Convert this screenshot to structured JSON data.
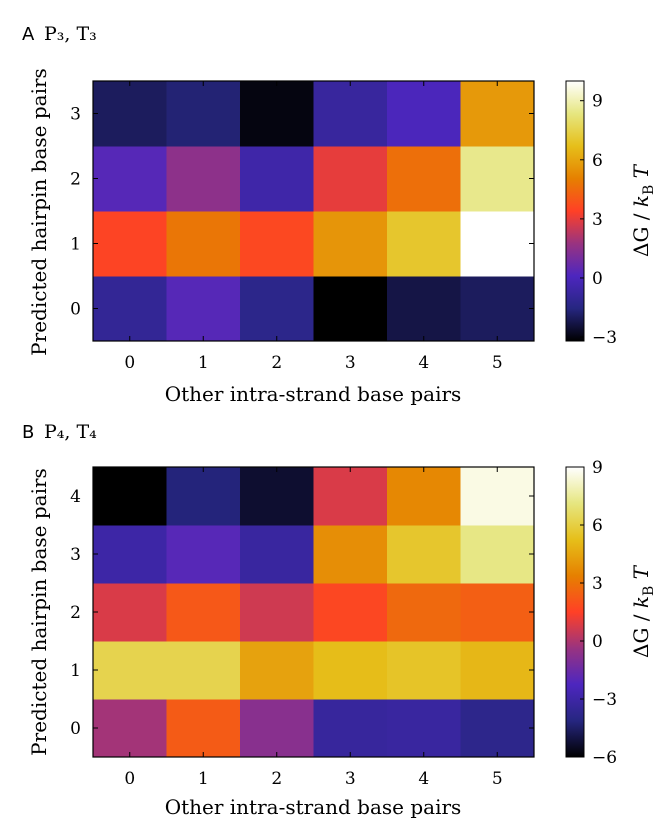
{
  "chart_data": [
    {
      "type": "heatmap",
      "panel_label": "A",
      "title": "P₃, T₃",
      "xlabel": "Other intra-strand base pairs",
      "ylabel": "Predicted hairpin base pairs",
      "colorbar_label": "ΔG / k_B T",
      "x": [
        0,
        1,
        2,
        3,
        4,
        5
      ],
      "y": [
        0,
        1,
        2,
        3
      ],
      "x_tick_labels": [
        "0",
        "1",
        "2",
        "3",
        "4",
        "5"
      ],
      "y_tick_labels": [
        "0",
        "1",
        "2",
        "3"
      ],
      "values": [
        [
          -1.0,
          0.3,
          -1.3,
          -3.2,
          -2.3,
          -2.0
        ],
        [
          3.5,
          4.8,
          3.6,
          5.6,
          7.0,
          10.0
        ],
        [
          0.3,
          1.5,
          -0.5,
          3.0,
          4.6,
          8.5
        ],
        [
          -2.0,
          -1.7,
          -3.0,
          -0.8,
          0.0,
          5.7
        ]
      ],
      "colorbar_ticks": [
        "−3",
        "0",
        "3",
        "6",
        "9"
      ],
      "colorbar_tick_values": [
        -3,
        0,
        3,
        6,
        9
      ],
      "vmin": -3.2,
      "vmax": 10.0,
      "colormap": "CMRmap"
    },
    {
      "type": "heatmap",
      "panel_label": "B",
      "title": "P₄, T₄",
      "xlabel": "Other intra-strand base pairs",
      "ylabel": "Predicted hairpin base pairs",
      "colorbar_label": "ΔG / k_B T",
      "x": [
        0,
        1,
        2,
        3,
        4,
        5
      ],
      "y": [
        0,
        1,
        2,
        3,
        4
      ],
      "x_tick_labels": [
        "0",
        "1",
        "2",
        "3",
        "4",
        "5"
      ],
      "y_tick_labels": [
        "0",
        "1",
        "2",
        "3",
        "4"
      ],
      "values": [
        [
          -0.2,
          2.3,
          -0.8,
          -3.3,
          -3.2,
          -3.8
        ],
        [
          6.2,
          6.2,
          4.4,
          5.2,
          5.5,
          5.0
        ],
        [
          0.8,
          2.2,
          0.6,
          1.7,
          2.7,
          2.4
        ],
        [
          -3.0,
          -2.0,
          -3.2,
          3.8,
          5.6,
          7.2
        ],
        [
          -6.0,
          -4.2,
          -5.3,
          0.8,
          3.6,
          8.6
        ]
      ],
      "colorbar_ticks": [
        "−6",
        "−3",
        "0",
        "3",
        "6",
        "9"
      ],
      "colorbar_tick_values": [
        -6,
        -3,
        0,
        3,
        6,
        9
      ],
      "vmin": -6.0,
      "vmax": 9.0,
      "colormap": "CMRmap"
    }
  ]
}
